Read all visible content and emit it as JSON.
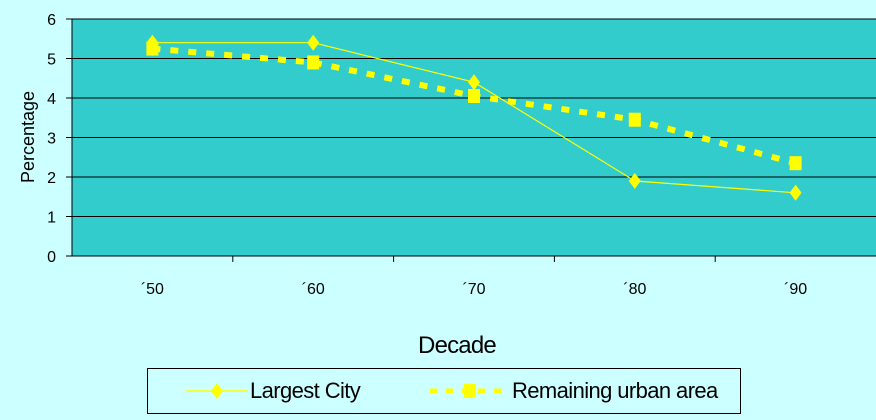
{
  "chart_data": {
    "type": "line",
    "categories": [
      "´50",
      "´60",
      "´70",
      "´80",
      "´90"
    ],
    "series": [
      {
        "name": "Largest City",
        "values": [
          5.4,
          5.4,
          4.4,
          1.9,
          1.6
        ],
        "color": "#ffff00",
        "marker": "diamond",
        "line_style": "solid"
      },
      {
        "name": "Remaining urban area",
        "values": [
          5.25,
          4.9,
          4.05,
          3.45,
          2.35
        ],
        "color": "#ffff00",
        "marker": "square",
        "line_style": "dashed"
      }
    ],
    "xlabel": "Decade",
    "ylabel": "Percentage",
    "ylim": [
      0,
      6
    ],
    "yticks": [
      "0",
      "1",
      "2",
      "3",
      "4",
      "5",
      "6"
    ],
    "grid": true,
    "legend_position": "bottom",
    "plot_background": "#33cccc",
    "page_background": "#ccffff"
  }
}
